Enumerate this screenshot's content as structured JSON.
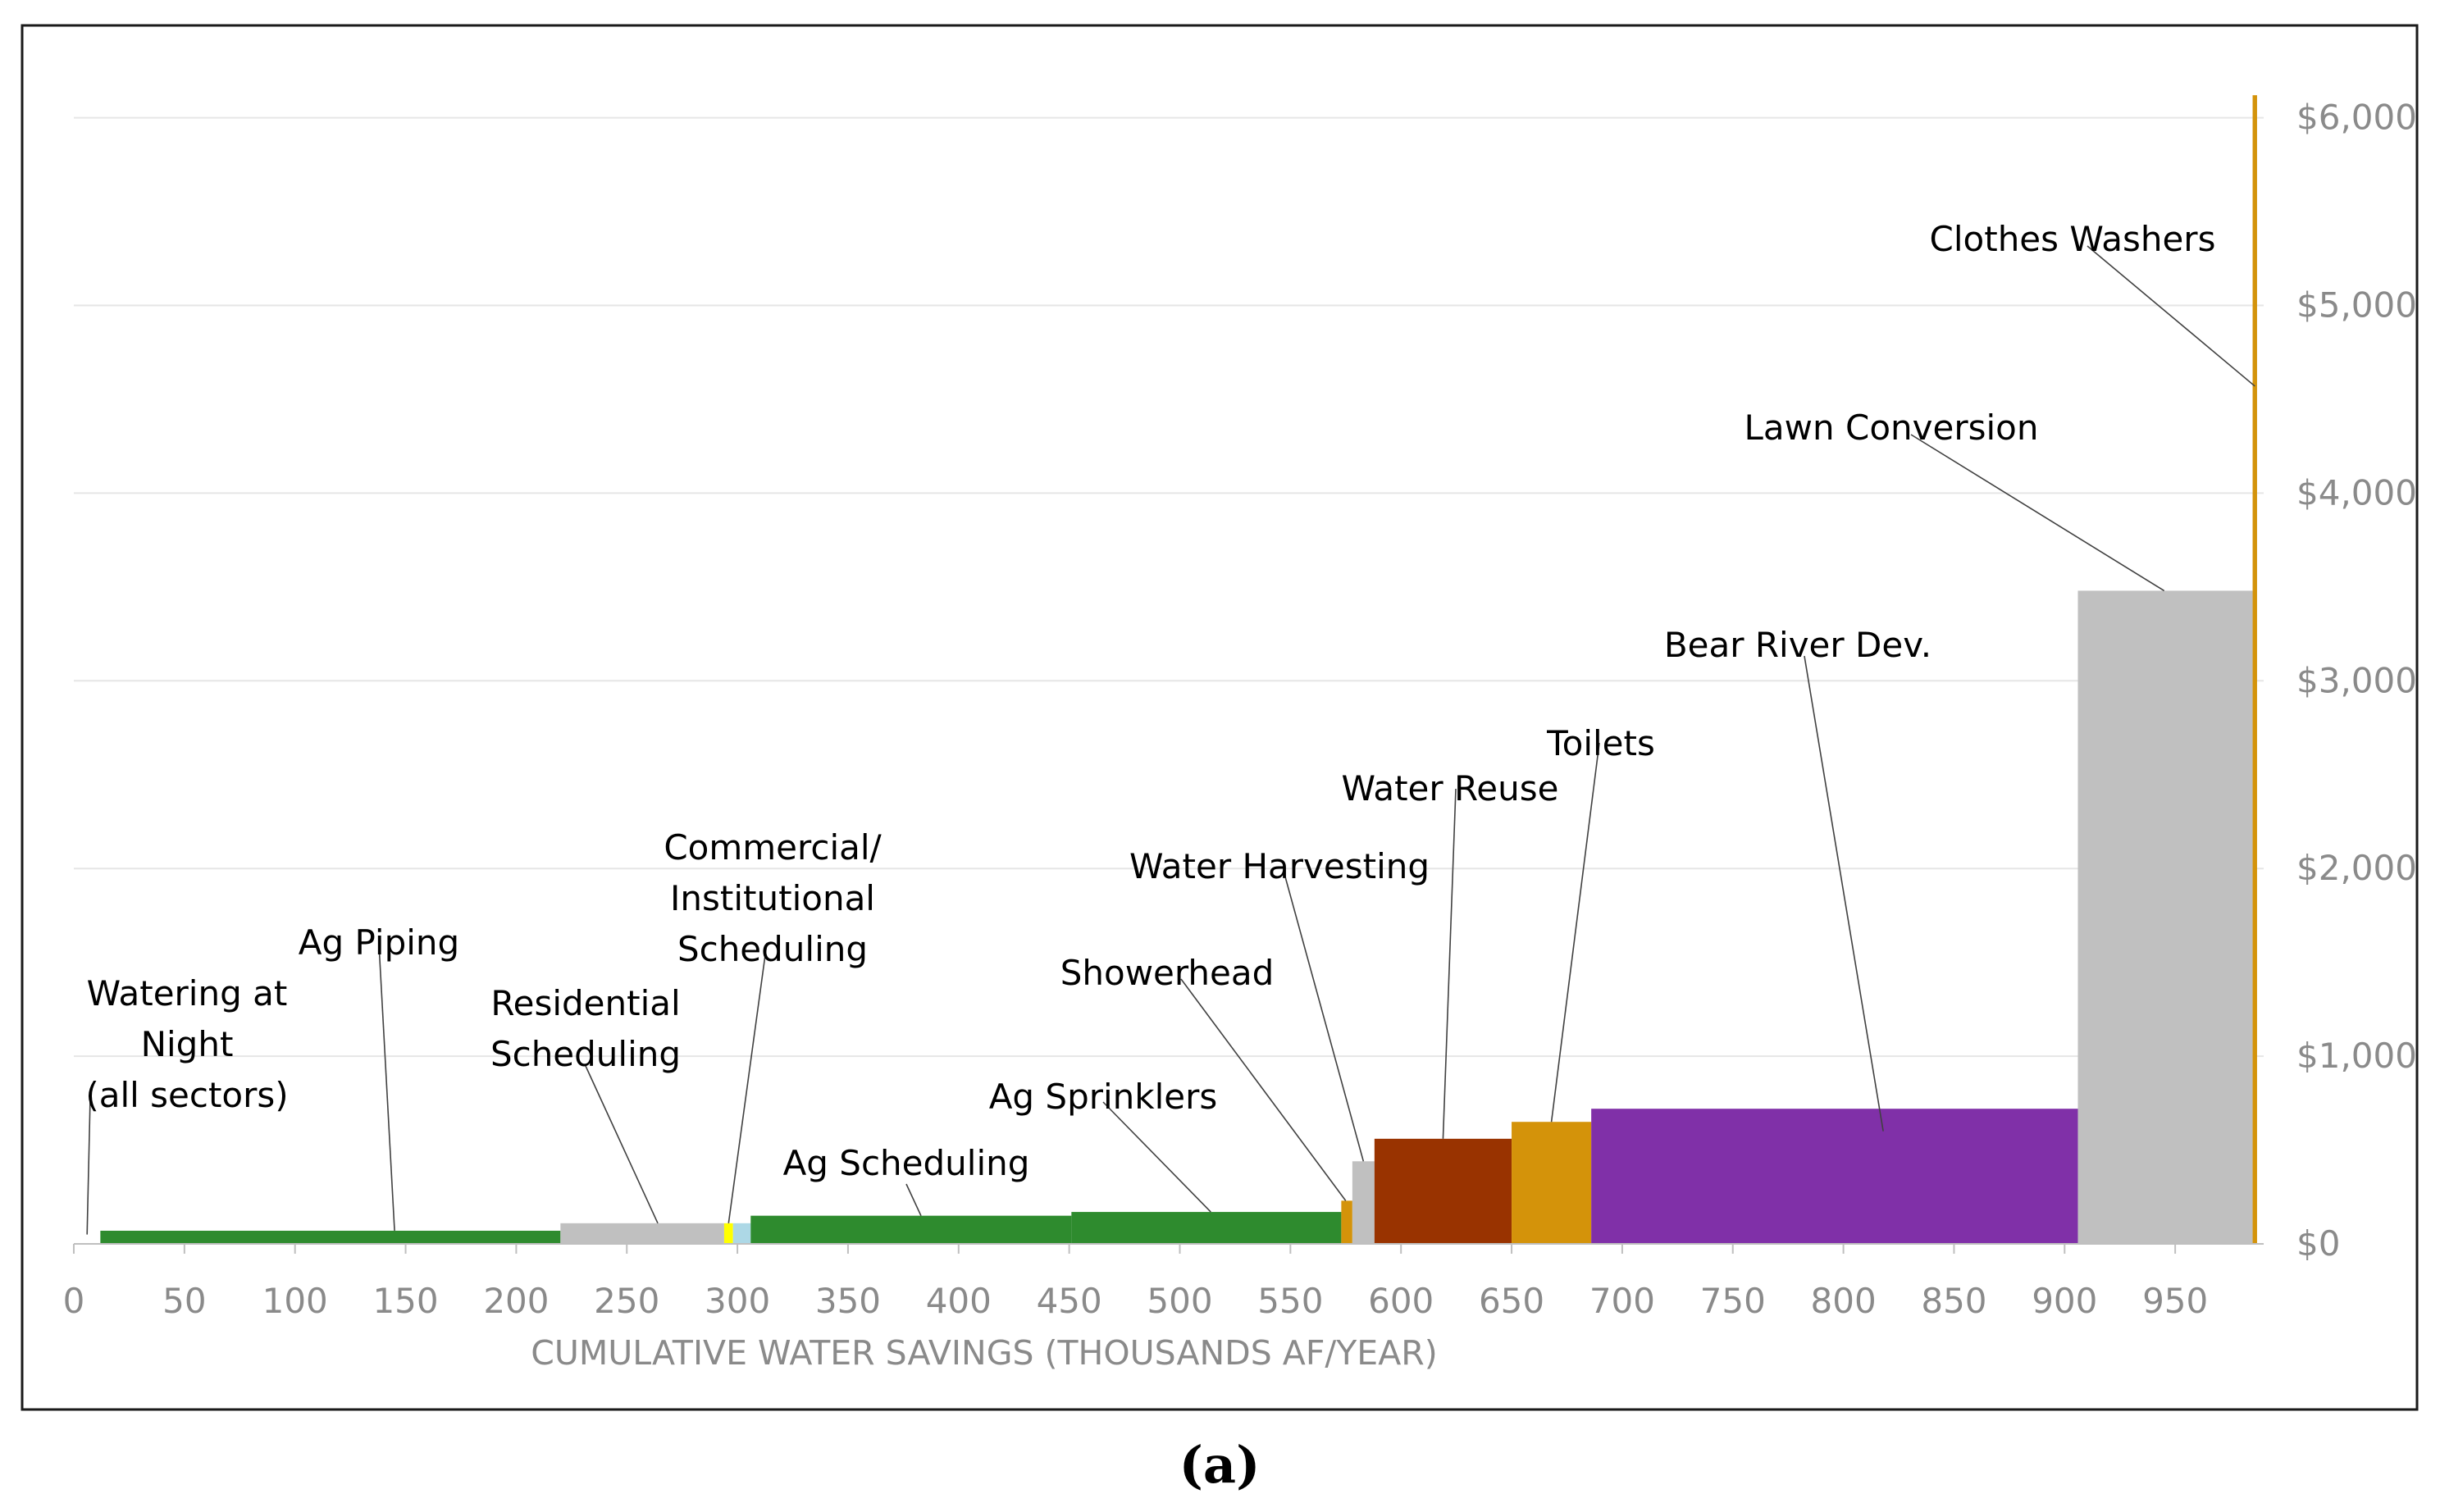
{
  "chart_data": {
    "type": "bar",
    "subtype": "variable-width cost curve",
    "xlabel": "CUMULATIVE WATER SAVINGS (THOUSANDS AF/YEAR)",
    "ylabel": "",
    "xlim": [
      0,
      990
    ],
    "ylim": [
      0,
      6000
    ],
    "x_ticks": [
      "0",
      "50",
      "100",
      "150",
      "200",
      "250",
      "300",
      "350",
      "400",
      "450",
      "500",
      "550",
      "600",
      "650",
      "700",
      "750",
      "800",
      "850",
      "900",
      "950"
    ],
    "y_ticks": [
      "$0",
      "$1,000",
      "$2,000",
      "$3,000",
      "$4,000",
      "$5,000",
      "$6,000"
    ],
    "grid": "horizontal",
    "series": [
      {
        "name": "Watering at Night (all sectors)",
        "x_start": 12,
        "x_end": 220,
        "value": 70,
        "color": "#2e8b2e"
      },
      {
        "name": "Ag Piping",
        "x_start": 12,
        "x_end": 220,
        "value": 70,
        "color": "#2e8b2e"
      },
      {
        "name": "Residential Scheduling",
        "x_start": 220,
        "x_end": 294,
        "value": 110,
        "color": "#c0c0c0"
      },
      {
        "name": "Commercial/Institutional Scheduling",
        "x_start": 294,
        "x_end": 298,
        "value": 110,
        "color": "#ffff00"
      },
      {
        "name": "Commercial/Institutional Scheduling (2)",
        "x_start": 298,
        "x_end": 306,
        "value": 110,
        "color": "#add8e6"
      },
      {
        "name": "Ag Scheduling",
        "x_start": 306,
        "x_end": 451,
        "value": 150,
        "color": "#2e8b2e"
      },
      {
        "name": "Ag Sprinklers",
        "x_start": 451,
        "x_end": 573,
        "value": 170,
        "color": "#2e8b2e"
      },
      {
        "name": "Showerhead",
        "x_start": 573,
        "x_end": 578,
        "value": 230,
        "color": "#d4930a"
      },
      {
        "name": "Water Harvesting",
        "x_start": 578,
        "x_end": 588,
        "value": 440,
        "color": "#c0c0c0"
      },
      {
        "name": "Water Reuse",
        "x_start": 588,
        "x_end": 650,
        "value": 560,
        "color": "#993300"
      },
      {
        "name": "Toilets",
        "x_start": 650,
        "x_end": 686,
        "value": 650,
        "color": "#d4930a"
      },
      {
        "name": "Bear River Dev.",
        "x_start": 686,
        "x_end": 906,
        "value": 720,
        "color": "#8030a8"
      },
      {
        "name": "Lawn Conversion",
        "x_start": 906,
        "x_end": 985,
        "value": 3480,
        "color": "#c0c0c0"
      },
      {
        "name": "Clothes Washers",
        "x_start": 985,
        "x_end": 987,
        "value": 6120,
        "color": "#d4930a"
      }
    ],
    "annotations": [
      {
        "lines": [
          "Watering at",
          "Night",
          "(all sectors)"
        ],
        "x": 6,
        "y": 50
      },
      {
        "lines": [
          "Ag Piping"
        ],
        "x": 145,
        "y": 70
      },
      {
        "lines": [
          "Residential",
          "Scheduling"
        ],
        "x": 264,
        "y": 110
      },
      {
        "lines": [
          "Commercial/",
          "Institutional",
          "Scheduling"
        ],
        "x": 296,
        "y": 110
      },
      {
        "lines": [
          "Ag Scheduling"
        ],
        "x": 383,
        "y": 150
      },
      {
        "lines": [
          "Ag Sprinklers"
        ],
        "x": 514,
        "y": 170
      },
      {
        "lines": [
          "Showerhead"
        ],
        "x": 575,
        "y": 230
      },
      {
        "lines": [
          "Water Harvesting"
        ],
        "x": 583,
        "y": 440
      },
      {
        "lines": [
          "Water Reuse"
        ],
        "x": 619,
        "y": 560
      },
      {
        "lines": [
          "Toilets"
        ],
        "x": 668,
        "y": 650
      },
      {
        "lines": [
          "Bear River Dev."
        ],
        "x": 818,
        "y": 600
      },
      {
        "lines": [
          "Lawn Conversion"
        ],
        "x": 945,
        "y": 3480
      },
      {
        "lines": [
          "Clothes Washers"
        ],
        "x": 986,
        "y": 4570
      }
    ]
  },
  "caption": "(a)"
}
